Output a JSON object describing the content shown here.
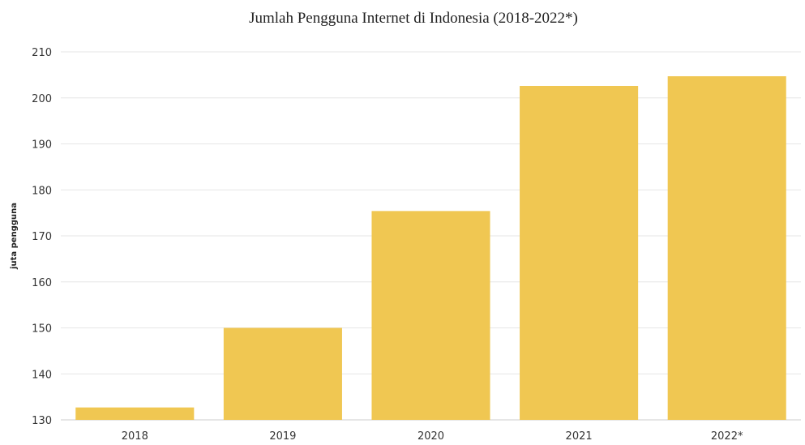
{
  "chart_data": {
    "type": "bar",
    "title": "Jumlah Pengguna Internet di Indonesia (2018-2022*)",
    "xlabel": "",
    "ylabel": "juta pengguna",
    "categories": [
      "2018",
      "2019",
      "2020",
      "2021",
      "2022*"
    ],
    "values": [
      132.7,
      150.0,
      175.4,
      202.6,
      204.7
    ],
    "ylim": [
      130,
      210
    ],
    "yticks": [
      130,
      140,
      150,
      160,
      170,
      180,
      190,
      200,
      210
    ],
    "grid": true,
    "legend": "none",
    "bar_color": "#f0c752"
  }
}
